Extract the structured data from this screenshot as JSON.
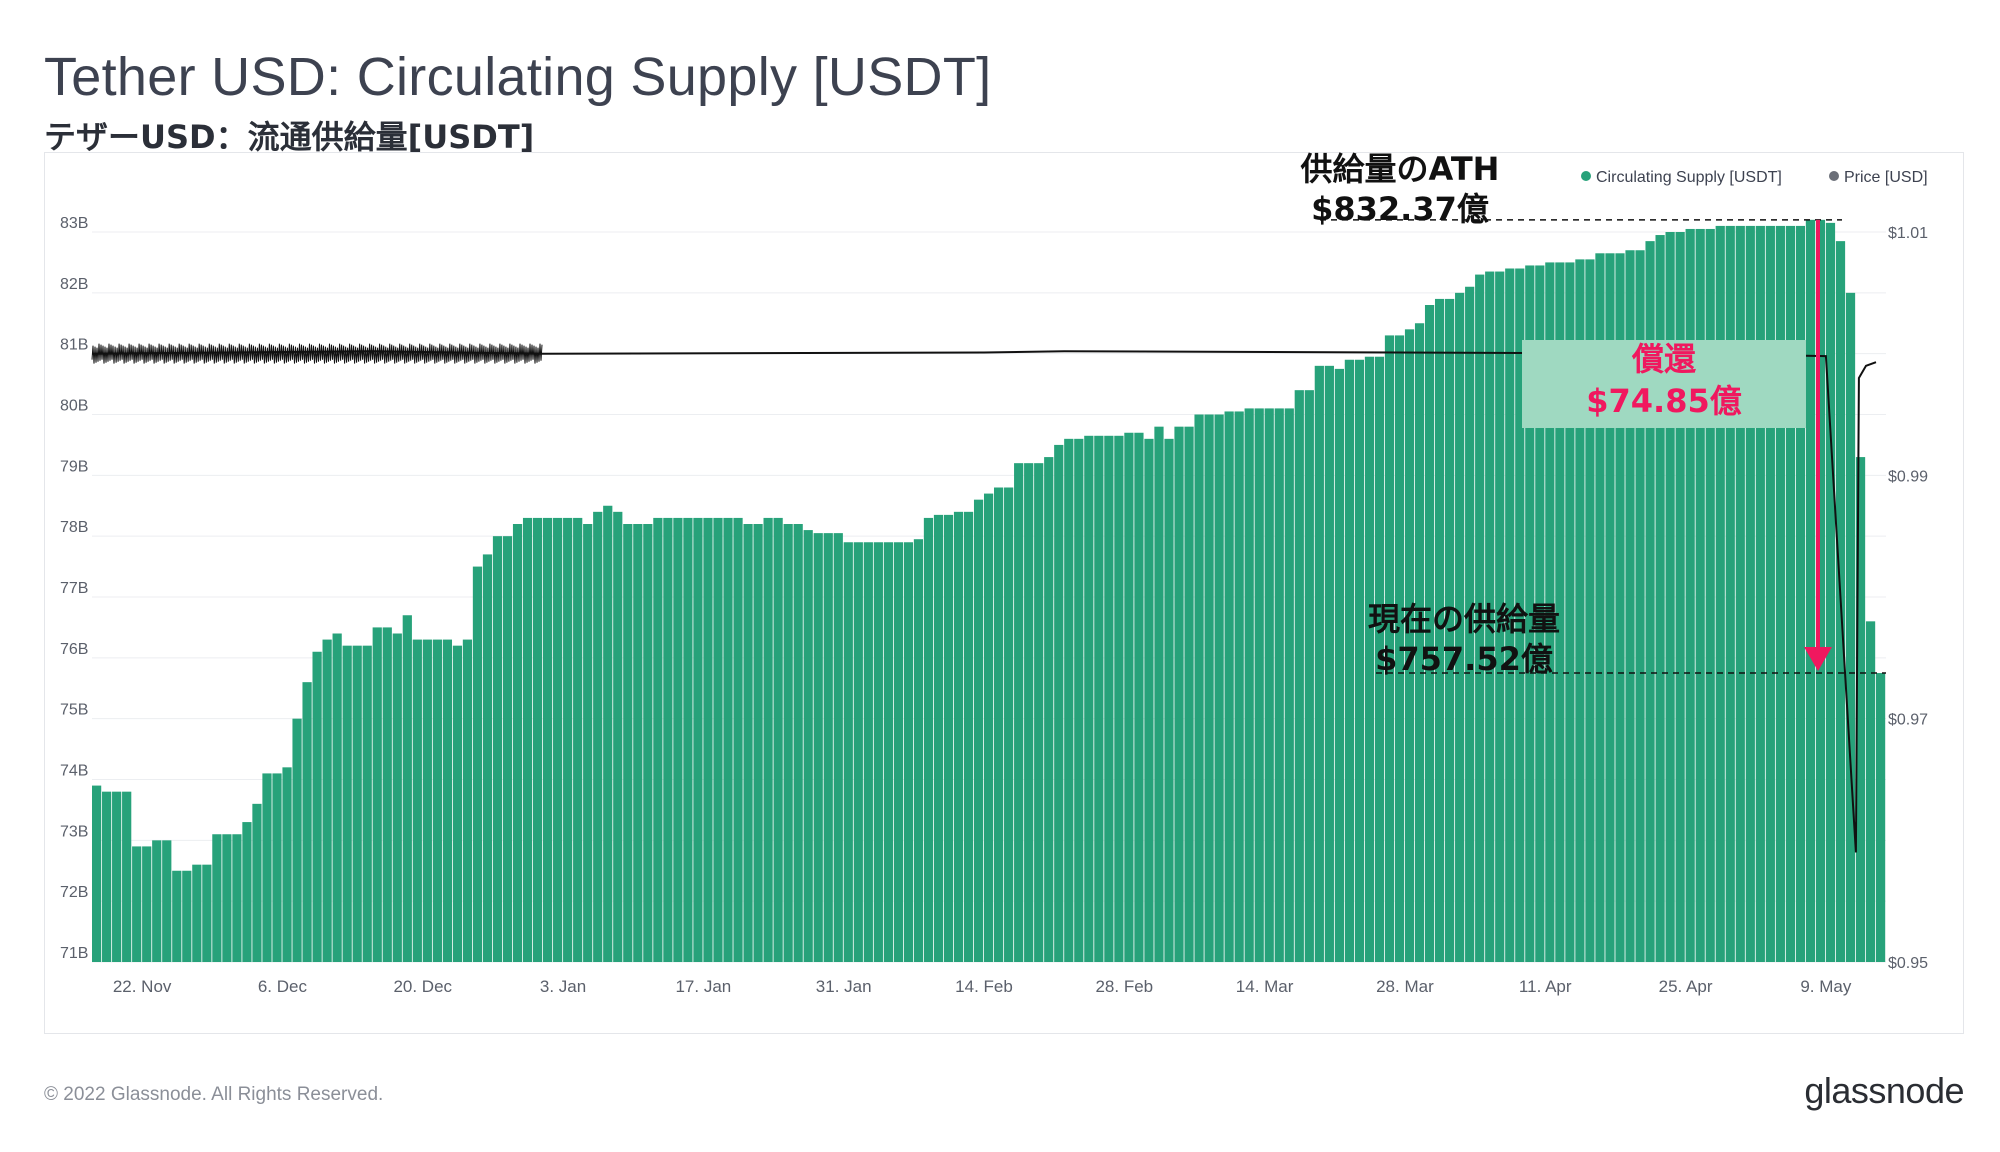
{
  "title": "Tether USD: Circulating Supply [USDT]",
  "subtitle": "テザーUSD：流通供給量[USDT]",
  "footer": {
    "copyright": "© 2022 Glassnode. All Rights Reserved.",
    "logo": "glassnode"
  },
  "chart_data": {
    "type": "bar",
    "title": "Tether USD: Circulating Supply [USDT]",
    "legend_position": "top-right",
    "legend": [
      {
        "label": "Circulating Supply [USDT]",
        "color": "#27a27a"
      },
      {
        "label": "Price [USD]",
        "color": "#6b6f78"
      }
    ],
    "colors": {
      "supply": "#27a27a",
      "price": "#111111",
      "redemption": "#f0185f",
      "grid": "#eceef1"
    },
    "x_tick_labels": [
      "22. Nov",
      "6. Dec",
      "20. Dec",
      "3. Jan",
      "17. Jan",
      "31. Jan",
      "14. Feb",
      "28. Feb",
      "14. Mar",
      "28. Mar",
      "11. Apr",
      "25. Apr",
      "9. May"
    ],
    "x_range": [
      "2021-11-17",
      "2022-05-14"
    ],
    "y_left": {
      "label": "",
      "ticks": [
        "71B",
        "72B",
        "73B",
        "74B",
        "75B",
        "76B",
        "77B",
        "78B",
        "79B",
        "80B",
        "81B",
        "82B",
        "83B"
      ],
      "range": [
        71,
        83
      ]
    },
    "y_right": {
      "label": "",
      "ticks": [
        "$0.95",
        "$0.97",
        "$0.99",
        "$1.01"
      ],
      "range": [
        0.95,
        1.01
      ]
    },
    "series": [
      {
        "name": "Circulating Supply [USDT]",
        "unit": "billion USD",
        "points": [
          [
            "2021-11-17",
            73.9
          ],
          [
            "2021-11-18",
            73.8
          ],
          [
            "2021-11-21",
            72.9
          ],
          [
            "2021-11-23",
            73.0
          ],
          [
            "2021-11-25",
            72.5
          ],
          [
            "2021-11-27",
            72.6
          ],
          [
            "2021-11-29",
            73.1
          ],
          [
            "2021-12-02",
            73.3
          ],
          [
            "2021-12-03",
            73.6
          ],
          [
            "2021-12-04",
            74.1
          ],
          [
            "2021-12-06",
            74.2
          ],
          [
            "2021-12-07",
            75.0
          ],
          [
            "2021-12-08",
            75.6
          ],
          [
            "2021-12-09",
            76.1
          ],
          [
            "2021-12-10",
            76.3
          ],
          [
            "2021-12-11",
            76.4
          ],
          [
            "2021-12-12",
            76.2
          ],
          [
            "2021-12-15",
            76.5
          ],
          [
            "2021-12-17",
            76.4
          ],
          [
            "2021-12-18",
            76.7
          ],
          [
            "2021-12-19",
            76.3
          ],
          [
            "2021-12-23",
            76.2
          ],
          [
            "2021-12-24",
            76.3
          ],
          [
            "2021-12-25",
            77.5
          ],
          [
            "2021-12-26",
            77.7
          ],
          [
            "2021-12-27",
            78.0
          ],
          [
            "2021-12-29",
            78.2
          ],
          [
            "2021-12-30",
            78.3
          ],
          [
            "2022-01-05",
            78.2
          ],
          [
            "2022-01-06",
            78.4
          ],
          [
            "2022-01-07",
            78.5
          ],
          [
            "2022-01-08",
            78.4
          ],
          [
            "2022-01-09",
            78.2
          ],
          [
            "2022-01-12",
            78.3
          ],
          [
            "2022-01-14",
            78.3
          ],
          [
            "2022-01-21",
            78.2
          ],
          [
            "2022-01-23",
            78.3
          ],
          [
            "2022-01-25",
            78.2
          ],
          [
            "2022-01-27",
            78.1
          ],
          [
            "2022-01-28",
            78.05
          ],
          [
            "2022-01-31",
            77.9
          ],
          [
            "2022-02-06",
            77.9
          ],
          [
            "2022-02-07",
            77.95
          ],
          [
            "2022-02-08",
            78.3
          ],
          [
            "2022-02-09",
            78.35
          ],
          [
            "2022-02-11",
            78.4
          ],
          [
            "2022-02-13",
            78.6
          ],
          [
            "2022-02-14",
            78.7
          ],
          [
            "2022-02-15",
            78.8
          ],
          [
            "2022-02-17",
            79.2
          ],
          [
            "2022-02-20",
            79.3
          ],
          [
            "2022-02-21",
            79.5
          ],
          [
            "2022-02-22",
            79.6
          ],
          [
            "2022-02-24",
            79.65
          ],
          [
            "2022-02-28",
            79.7
          ],
          [
            "2022-03-02",
            79.6
          ],
          [
            "2022-03-03",
            79.8
          ],
          [
            "2022-03-04",
            79.6
          ],
          [
            "2022-03-05",
            79.8
          ],
          [
            "2022-03-07",
            80.0
          ],
          [
            "2022-03-10",
            80.05
          ],
          [
            "2022-03-12",
            80.1
          ],
          [
            "2022-03-17",
            80.4
          ],
          [
            "2022-03-19",
            80.8
          ],
          [
            "2022-03-21",
            80.75
          ],
          [
            "2022-03-22",
            80.9
          ],
          [
            "2022-03-24",
            80.95
          ],
          [
            "2022-03-26",
            81.3
          ],
          [
            "2022-03-28",
            81.4
          ],
          [
            "2022-03-29",
            81.5
          ],
          [
            "2022-03-30",
            81.8
          ],
          [
            "2022-03-31",
            81.9
          ],
          [
            "2022-04-02",
            82.0
          ],
          [
            "2022-04-03",
            82.1
          ],
          [
            "2022-04-04",
            82.3
          ],
          [
            "2022-04-05",
            82.35
          ],
          [
            "2022-04-07",
            82.4
          ],
          [
            "2022-04-09",
            82.45
          ],
          [
            "2022-04-11",
            82.5
          ],
          [
            "2022-04-14",
            82.55
          ],
          [
            "2022-04-16",
            82.65
          ],
          [
            "2022-04-19",
            82.7
          ],
          [
            "2022-04-21",
            82.85
          ],
          [
            "2022-04-22",
            82.95
          ],
          [
            "2022-04-23",
            83.0
          ],
          [
            "2022-04-25",
            83.05
          ],
          [
            "2022-04-28",
            83.1
          ],
          [
            "2022-05-07",
            83.2
          ],
          [
            "2022-05-09",
            83.15
          ],
          [
            "2022-05-10",
            82.85
          ],
          [
            "2022-05-11",
            82.0
          ],
          [
            "2022-05-12",
            79.3
          ],
          [
            "2022-05-13",
            76.6
          ],
          [
            "2022-05-14",
            75.75
          ]
        ]
      },
      {
        "name": "Price [USD]",
        "unit": "USD",
        "points": [
          [
            "2021-11-17",
            1.0
          ],
          [
            "2021-12-15",
            1.0002
          ],
          [
            "2022-01-01",
            1.0
          ],
          [
            "2022-02-14",
            1.0001
          ],
          [
            "2022-02-22",
            1.0002
          ],
          [
            "2022-04-25",
            1.0
          ],
          [
            "2022-05-09",
            0.9998
          ],
          [
            "2022-05-12",
            0.959
          ],
          [
            "2022-05-12",
            0.998
          ],
          [
            "2022-05-13",
            0.999
          ],
          [
            "2022-05-14",
            0.9993
          ]
        ]
      }
    ],
    "annotations": {
      "ath_label": "供給量のATH",
      "ath_value": "$832.37億",
      "redemption_label": "償還",
      "redemption_value": "$74.85億",
      "current_label": "現在の供給量",
      "current_value": "$757.52億"
    }
  }
}
